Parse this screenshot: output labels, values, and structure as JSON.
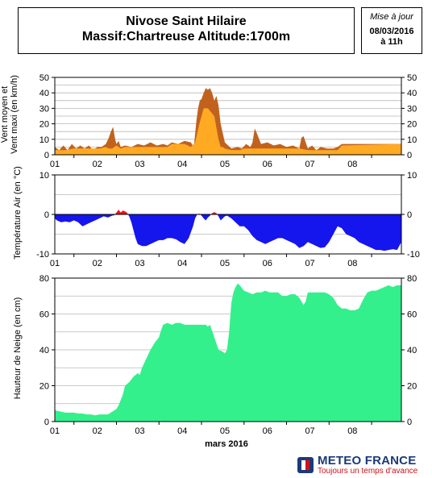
{
  "header": {
    "title_line1": "Nivose Saint Hilaire",
    "title_line2": "Massif:Chartreuse Altitude:1700m"
  },
  "update": {
    "label": "Mise à jour",
    "date": "08/03/2016",
    "time": "à 11h"
  },
  "logo": {
    "name": "METEO FRANCE",
    "tagline": "Toujours un temps d'avance"
  },
  "colors": {
    "wind_mean": "#ffaa22",
    "wind_max": "#c0621e",
    "temp_negative": "#1515ee",
    "temp_positive": "#e8141e",
    "snow": "#33f08c"
  },
  "chart_data": [
    {
      "type": "area",
      "title": "",
      "ylabel": "Vent moyen et Vent maxi (en km/h)",
      "ylim": [
        0,
        50
      ],
      "yticks": [
        0,
        10,
        20,
        30,
        40,
        50
      ],
      "xticks": [
        "01",
        "02",
        "03",
        "04",
        "05",
        "06",
        "07",
        "08"
      ],
      "xlim": [
        0.55,
        8.7
      ],
      "grid": true,
      "series": [
        {
          "name": "Vent moyen",
          "color": "#ffaa22",
          "x": [
            0.55,
            0.8,
            1.0,
            1.6,
            1.75,
            1.82,
            1.9,
            2.0,
            2.1,
            2.2,
            3.2,
            3.3,
            3.6,
            3.75,
            3.85,
            3.95,
            4.05,
            4.15,
            4.3,
            4.4,
            4.45,
            4.5,
            4.55,
            4.7,
            4.9,
            5.0,
            6.3,
            6.5,
            6.8,
            7.2,
            7.3,
            8.7
          ],
          "y": [
            3,
            3,
            4,
            4,
            5,
            4,
            4,
            6,
            4,
            5,
            5,
            7,
            7,
            5,
            8,
            20,
            30,
            30,
            25,
            10,
            5,
            5,
            4,
            3,
            3,
            4,
            4,
            3,
            3,
            3,
            6,
            7
          ]
        },
        {
          "name": "Vent maxi",
          "color": "#c0621e",
          "x": [
            0.55,
            0.65,
            0.75,
            0.85,
            0.95,
            1.05,
            1.15,
            1.25,
            1.35,
            1.45,
            1.55,
            1.65,
            1.75,
            1.82,
            1.87,
            1.92,
            1.97,
            2.0,
            2.05,
            2.1,
            2.2,
            2.35,
            2.5,
            2.65,
            2.8,
            2.95,
            3.1,
            3.2,
            3.3,
            3.45,
            3.6,
            3.75,
            3.82,
            3.88,
            3.92,
            3.96,
            4.0,
            4.05,
            4.1,
            4.15,
            4.2,
            4.25,
            4.3,
            4.35,
            4.4,
            4.45,
            4.5,
            4.55,
            4.7,
            4.85,
            4.95,
            5.05,
            5.15,
            5.2,
            5.25,
            5.3,
            5.4,
            5.55,
            5.7,
            5.85,
            6.0,
            6.15,
            6.3,
            6.35,
            6.4,
            6.45,
            6.5,
            6.6,
            6.7,
            6.8,
            6.95,
            7.1,
            7.2,
            7.3,
            7.5,
            7.7,
            7.9,
            8.1,
            8.3,
            8.5,
            8.7
          ],
          "y": [
            5,
            3,
            6,
            3,
            7,
            4,
            6,
            4,
            6,
            3,
            5,
            5,
            7,
            11,
            15,
            18,
            10,
            7,
            9,
            5,
            6,
            5,
            7,
            6,
            8,
            6,
            7,
            6,
            8,
            7,
            9,
            8,
            5,
            22,
            30,
            35,
            36,
            40,
            43,
            42,
            43,
            40,
            35,
            38,
            32,
            20,
            14,
            8,
            4,
            5,
            4,
            7,
            5,
            8,
            17,
            14,
            7,
            8,
            6,
            7,
            5,
            6,
            4,
            11,
            12,
            8,
            4,
            6,
            3,
            5,
            4,
            4,
            5,
            7,
            7,
            7,
            7,
            7,
            7,
            7,
            7
          ]
        }
      ]
    },
    {
      "type": "area",
      "title": "",
      "ylabel": "Température Air (en °C)",
      "ylim": [
        -10,
        10
      ],
      "yticks": [
        -10,
        0,
        10
      ],
      "xticks": [
        "01",
        "02",
        "03",
        "04",
        "05",
        "06",
        "07",
        "08"
      ],
      "xlim": [
        0.55,
        8.7
      ],
      "grid": true,
      "series": [
        {
          "name": "Température",
          "x": [
            0.55,
            0.6,
            0.7,
            0.8,
            0.9,
            1.0,
            1.1,
            1.2,
            1.3,
            1.4,
            1.5,
            1.6,
            1.7,
            1.8,
            1.9,
            1.95,
            2.0,
            2.05,
            2.1,
            2.15,
            2.2,
            2.25,
            2.3,
            2.35,
            2.4,
            2.45,
            2.5,
            2.6,
            2.7,
            2.8,
            2.9,
            3.0,
            3.1,
            3.2,
            3.3,
            3.4,
            3.5,
            3.6,
            3.7,
            3.8,
            3.85,
            3.9,
            3.95,
            4.0,
            4.05,
            4.1,
            4.15,
            4.2,
            4.25,
            4.3,
            4.35,
            4.4,
            4.45,
            4.5,
            4.55,
            4.6,
            4.7,
            4.8,
            4.9,
            5.0,
            5.1,
            5.2,
            5.3,
            5.4,
            5.5,
            5.6,
            5.7,
            5.8,
            5.9,
            6.0,
            6.1,
            6.2,
            6.3,
            6.4,
            6.5,
            6.6,
            6.7,
            6.8,
            6.9,
            7.0,
            7.1,
            7.2,
            7.3,
            7.4,
            7.5,
            7.6,
            7.7,
            7.8,
            7.9,
            8.0,
            8.1,
            8.2,
            8.3,
            8.4,
            8.5,
            8.6,
            8.7
          ],
          "y": [
            -1,
            -1.5,
            -2,
            -1.8,
            -2,
            -1.5,
            -2,
            -3,
            -2.5,
            -2,
            -1.5,
            -1,
            -0.5,
            -0.8,
            -0.3,
            -0.2,
            0.5,
            1.2,
            0.5,
            1,
            0.8,
            0.4,
            -0.5,
            -2,
            -4,
            -6,
            -7.5,
            -8,
            -8,
            -7.5,
            -7,
            -6.5,
            -6.5,
            -6,
            -6,
            -6.3,
            -7,
            -7.5,
            -6,
            -3,
            -1,
            0,
            0.2,
            -0.3,
            -1,
            -1.5,
            -0.8,
            -0.3,
            0.3,
            0.6,
            0.3,
            -0.5,
            -1.5,
            -1,
            -0.5,
            -0.3,
            -1,
            -2,
            -3,
            -3,
            -4,
            -5.5,
            -6.5,
            -7,
            -7.5,
            -7,
            -6.5,
            -6,
            -6,
            -6.5,
            -7,
            -7.5,
            -8.5,
            -8,
            -7,
            -7.5,
            -8,
            -8.5,
            -8.3,
            -7,
            -5,
            -3,
            -3.5,
            -5,
            -5.5,
            -6,
            -7,
            -7.5,
            -8,
            -8.5,
            -9,
            -9,
            -9.2,
            -9,
            -8.8,
            -9,
            -7
          ]
        }
      ]
    },
    {
      "type": "area",
      "title": "",
      "ylabel": "Hauteur de Neige (en cm)",
      "xlabel": "mars 2016",
      "ylim": [
        0,
        80
      ],
      "yticks": [
        0,
        20,
        40,
        60,
        80
      ],
      "xticks": [
        "01",
        "02",
        "03",
        "04",
        "05",
        "06",
        "07",
        "08"
      ],
      "xlim": [
        0.55,
        8.7
      ],
      "grid": true,
      "series": [
        {
          "name": "Hauteur de neige",
          "color": "#33f08c",
          "x": [
            0.55,
            0.6,
            0.7,
            0.8,
            0.9,
            1.0,
            1.1,
            1.2,
            1.3,
            1.4,
            1.5,
            1.6,
            1.7,
            1.8,
            1.9,
            2.0,
            2.05,
            2.1,
            2.15,
            2.2,
            2.3,
            2.4,
            2.5,
            2.55,
            2.6,
            2.7,
            2.8,
            2.9,
            3.0,
            3.05,
            3.1,
            3.2,
            3.3,
            3.4,
            3.5,
            3.6,
            3.7,
            3.8,
            3.9,
            4.0,
            4.1,
            4.15,
            4.2,
            4.3,
            4.4,
            4.5,
            4.55,
            4.6,
            4.65,
            4.7,
            4.75,
            4.8,
            4.85,
            4.9,
            5.0,
            5.1,
            5.2,
            5.3,
            5.4,
            5.5,
            5.6,
            5.7,
            5.8,
            5.9,
            6.0,
            6.1,
            6.2,
            6.3,
            6.4,
            6.45,
            6.5,
            6.6,
            6.7,
            6.8,
            6.9,
            7.0,
            7.1,
            7.2,
            7.3,
            7.4,
            7.5,
            7.6,
            7.7,
            7.8,
            7.9,
            8.0,
            8.1,
            8.2,
            8.3,
            8.4,
            8.5,
            8.6,
            8.7
          ],
          "y": [
            6.5,
            6,
            5.5,
            5,
            5,
            5,
            4.5,
            4.5,
            4,
            4,
            3.5,
            4,
            4,
            4,
            5.5,
            7,
            9,
            12,
            15,
            20,
            22,
            25,
            27,
            26,
            30,
            35,
            40,
            44,
            47,
            51,
            54,
            55,
            54,
            55,
            55,
            54,
            54,
            54,
            54,
            54,
            54,
            53,
            54,
            47,
            40,
            39,
            38,
            40,
            50,
            66,
            72,
            75,
            77,
            76,
            73,
            72,
            71,
            72,
            72,
            73,
            72,
            72,
            72,
            70,
            70,
            71,
            71,
            69,
            65,
            67,
            72,
            72,
            72,
            72,
            72,
            71,
            69,
            65,
            63,
            63,
            62,
            62,
            63,
            68,
            72,
            73,
            73,
            74,
            75,
            76,
            75,
            76,
            76
          ]
        }
      ]
    }
  ]
}
